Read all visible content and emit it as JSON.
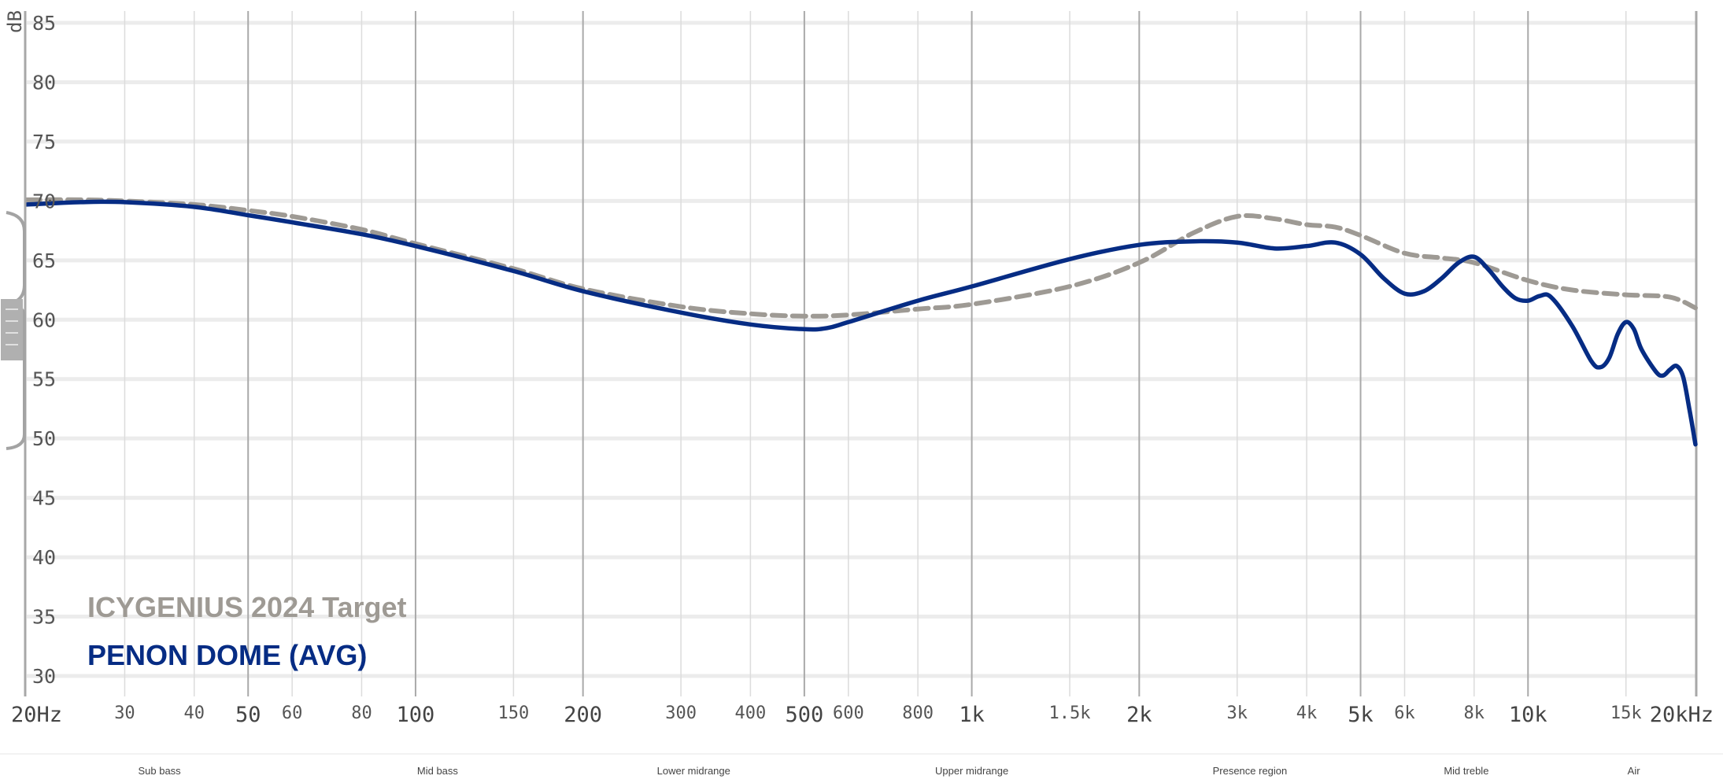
{
  "chart_data": {
    "type": "line",
    "title": "",
    "xlabel": "",
    "ylabel": "dB",
    "x_scale": "log",
    "xlim": [
      20,
      20000
    ],
    "ylim": [
      30,
      85
    ],
    "y_ticks": [
      85,
      80,
      75,
      70,
      65,
      60,
      55,
      50,
      45,
      40,
      35,
      30
    ],
    "x_ticks": [
      {
        "value": 20,
        "label": "20Hz",
        "major": true
      },
      {
        "value": 30,
        "label": "30",
        "major": false
      },
      {
        "value": 40,
        "label": "40",
        "major": false
      },
      {
        "value": 50,
        "label": "50",
        "major": true
      },
      {
        "value": 60,
        "label": "60",
        "major": false
      },
      {
        "value": 80,
        "label": "80",
        "major": false
      },
      {
        "value": 100,
        "label": "100",
        "major": true
      },
      {
        "value": 150,
        "label": "150",
        "major": false
      },
      {
        "value": 200,
        "label": "200",
        "major": true
      },
      {
        "value": 300,
        "label": "300",
        "major": false
      },
      {
        "value": 400,
        "label": "400",
        "major": false
      },
      {
        "value": 500,
        "label": "500",
        "major": true
      },
      {
        "value": 600,
        "label": "600",
        "major": false
      },
      {
        "value": 800,
        "label": "800",
        "major": false
      },
      {
        "value": 1000,
        "label": "1k",
        "major": true
      },
      {
        "value": 1500,
        "label": "1.5k",
        "major": false
      },
      {
        "value": 2000,
        "label": "2k",
        "major": true
      },
      {
        "value": 3000,
        "label": "3k",
        "major": false
      },
      {
        "value": 4000,
        "label": "4k",
        "major": false
      },
      {
        "value": 5000,
        "label": "5k",
        "major": true
      },
      {
        "value": 6000,
        "label": "6k",
        "major": false
      },
      {
        "value": 8000,
        "label": "8k",
        "major": false
      },
      {
        "value": 10000,
        "label": "10k",
        "major": true
      },
      {
        "value": 15000,
        "label": "15k",
        "major": false
      },
      {
        "value": 20000,
        "label": "20kHz",
        "major": true
      }
    ],
    "bands": [
      {
        "label": "Sub bass",
        "from": 20,
        "to": 60
      },
      {
        "label": "Mid bass",
        "from": 60,
        "to": 200
      },
      {
        "label": "Lower midrange",
        "from": 200,
        "to": 500
      },
      {
        "label": "Upper midrange",
        "from": 500,
        "to": 2000
      },
      {
        "label": "Presence region",
        "from": 2000,
        "to": 5000
      },
      {
        "label": "Mid treble",
        "from": 5000,
        "to": 12000
      },
      {
        "label": "Air",
        "from": 12000,
        "to": 20000
      }
    ],
    "series": [
      {
        "name": "ICYGENIUS 2024 Target",
        "color": "#9e9a94",
        "dash": true,
        "points": [
          [
            20,
            70.1
          ],
          [
            25,
            70.1
          ],
          [
            30,
            70.0
          ],
          [
            40,
            69.7
          ],
          [
            50,
            69.2
          ],
          [
            60,
            68.7
          ],
          [
            80,
            67.6
          ],
          [
            100,
            66.4
          ],
          [
            150,
            64.3
          ],
          [
            200,
            62.6
          ],
          [
            300,
            61.1
          ],
          [
            400,
            60.5
          ],
          [
            500,
            60.3
          ],
          [
            600,
            60.4
          ],
          [
            800,
            60.9
          ],
          [
            1000,
            61.3
          ],
          [
            1500,
            62.8
          ],
          [
            2000,
            64.8
          ],
          [
            2500,
            67.3
          ],
          [
            3000,
            68.7
          ],
          [
            3500,
            68.5
          ],
          [
            4000,
            68.0
          ],
          [
            4500,
            67.8
          ],
          [
            5000,
            67.1
          ],
          [
            6000,
            65.6
          ],
          [
            7000,
            65.2
          ],
          [
            8000,
            64.8
          ],
          [
            10000,
            63.3
          ],
          [
            12000,
            62.5
          ],
          [
            15000,
            62.1
          ],
          [
            18000,
            61.9
          ],
          [
            20000,
            61.0
          ]
        ]
      },
      {
        "name": "PENON DOME (AVG)",
        "color": "#062c84",
        "dash": false,
        "points": [
          [
            20,
            69.7
          ],
          [
            25,
            69.9
          ],
          [
            30,
            69.9
          ],
          [
            40,
            69.5
          ],
          [
            50,
            68.8
          ],
          [
            60,
            68.2
          ],
          [
            80,
            67.2
          ],
          [
            100,
            66.2
          ],
          [
            150,
            64.1
          ],
          [
            200,
            62.4
          ],
          [
            300,
            60.6
          ],
          [
            400,
            59.6
          ],
          [
            500,
            59.2
          ],
          [
            550,
            59.3
          ],
          [
            600,
            59.8
          ],
          [
            800,
            61.6
          ],
          [
            1000,
            62.8
          ],
          [
            1500,
            65.1
          ],
          [
            2000,
            66.3
          ],
          [
            2500,
            66.6
          ],
          [
            3000,
            66.5
          ],
          [
            3500,
            66.0
          ],
          [
            4000,
            66.2
          ],
          [
            4500,
            66.5
          ],
          [
            5000,
            65.5
          ],
          [
            5500,
            63.5
          ],
          [
            6000,
            62.2
          ],
          [
            6500,
            62.4
          ],
          [
            7000,
            63.5
          ],
          [
            7500,
            64.8
          ],
          [
            8000,
            65.3
          ],
          [
            8500,
            64.2
          ],
          [
            9000,
            62.8
          ],
          [
            9500,
            61.8
          ],
          [
            10000,
            61.6
          ],
          [
            10500,
            62.0
          ],
          [
            11000,
            61.9
          ],
          [
            12000,
            59.5
          ],
          [
            13000,
            56.5
          ],
          [
            13500,
            56.0
          ],
          [
            14000,
            56.8
          ],
          [
            14500,
            58.8
          ],
          [
            15000,
            59.8
          ],
          [
            15500,
            59.2
          ],
          [
            16000,
            57.5
          ],
          [
            17000,
            55.6
          ],
          [
            17500,
            55.3
          ],
          [
            18000,
            55.8
          ],
          [
            18500,
            56.1
          ],
          [
            19000,
            55.2
          ],
          [
            19500,
            52.5
          ],
          [
            20000,
            49.5
          ]
        ]
      }
    ]
  }
}
